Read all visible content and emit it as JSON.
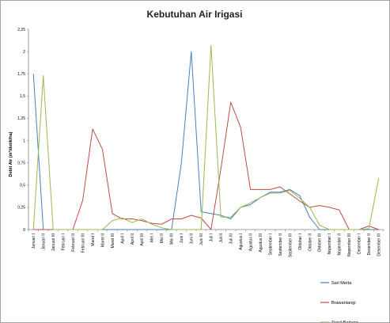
{
  "chart_data": {
    "type": "line",
    "title": "Kebutuhan Air Irigasi",
    "xlabel": "",
    "ylabel": "Debit Air (m³/detik/ha)",
    "ylim": [
      0,
      2.25
    ],
    "yticks": [
      "0",
      "0,25",
      "0,5",
      "0,75",
      "1",
      "1,25",
      "1,5",
      "1,75",
      "2",
      "2,25"
    ],
    "grid": false,
    "legend_position": "right",
    "categories": [
      "Januari I",
      "Januari II",
      "Januari III",
      "Februari I",
      "Februari II",
      "Februari III",
      "Maret I",
      "Maret II",
      "Maret III",
      "April I",
      "April II",
      "April III",
      "Mei I",
      "Mei II",
      "Mei III",
      "Juni I",
      "Juni II",
      "Juni III",
      "Juli I",
      "Juli II",
      "Juli III",
      "Agustus I",
      "Agustus II",
      "Agustus III",
      "September I",
      "September II",
      "September III",
      "Oktober I",
      "Oktober II",
      "Oktober III",
      "Nopember I",
      "Nopember II",
      "Nopember III",
      "Desember I",
      "Desember II",
      "Desember III"
    ],
    "series": [
      {
        "name": "Sari Merta",
        "color": "#4a7ebb",
        "values": [
          1.75,
          0,
          0,
          0,
          0,
          0,
          0,
          0,
          0,
          0,
          0,
          0,
          0,
          0,
          0,
          0.75,
          2.0,
          0.2,
          0.18,
          0.16,
          0.12,
          0.25,
          0.28,
          0.36,
          0.42,
          0.42,
          0.45,
          0.38,
          0.14,
          0,
          0,
          0,
          0,
          0,
          0,
          0
        ]
      },
      {
        "name": "Brawantangi",
        "color": "#be4b48",
        "values": [
          0,
          0,
          0,
          0,
          0,
          0.33,
          1.13,
          0.9,
          0.18,
          0.12,
          0.12,
          0.1,
          0.07,
          0.06,
          0.12,
          0.12,
          0.16,
          0.13,
          0,
          0.68,
          1.43,
          1.15,
          0.45,
          0.45,
          0.45,
          0.48,
          0.4,
          0.32,
          0.25,
          0.27,
          0.25,
          0.22,
          0,
          0,
          0.04,
          0
        ]
      },
      {
        "name": "Tegal Badeng",
        "color": "#98b954",
        "values": [
          0,
          1.73,
          0,
          0,
          0,
          0,
          0,
          0,
          0.1,
          0.13,
          0.08,
          0.12,
          0.06,
          0.02,
          0,
          0,
          0,
          0,
          2.07,
          0.14,
          0.14,
          0.25,
          0.3,
          0.36,
          0.41,
          0.41,
          0.44,
          0.35,
          0.25,
          0.05,
          0,
          0,
          0,
          0,
          0.01,
          0.58
        ]
      }
    ]
  }
}
